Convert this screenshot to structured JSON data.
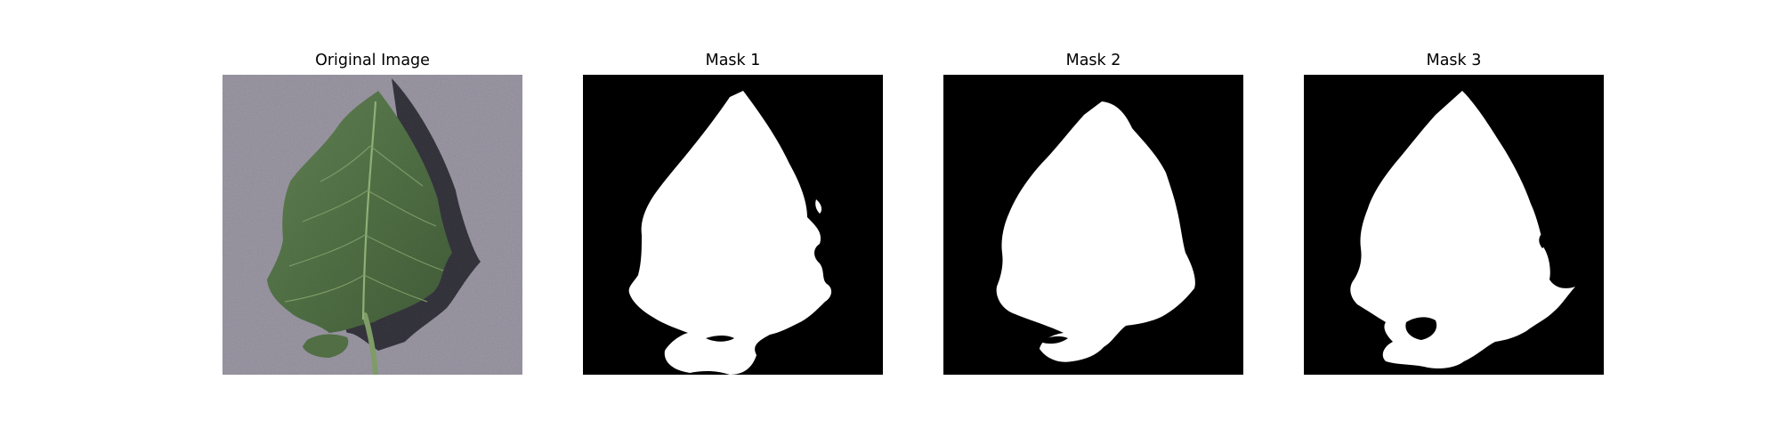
{
  "panels": [
    {
      "title": "Original Image"
    },
    {
      "title": "Mask 1"
    },
    {
      "title": "Mask 2"
    },
    {
      "title": "Mask 3"
    }
  ],
  "colors": {
    "background": "#8f8b99",
    "leaf": "#4a6a3e",
    "leaf_shadow": "#1c1c24",
    "mask_bg": "#000000",
    "mask_fg": "#ffffff"
  }
}
